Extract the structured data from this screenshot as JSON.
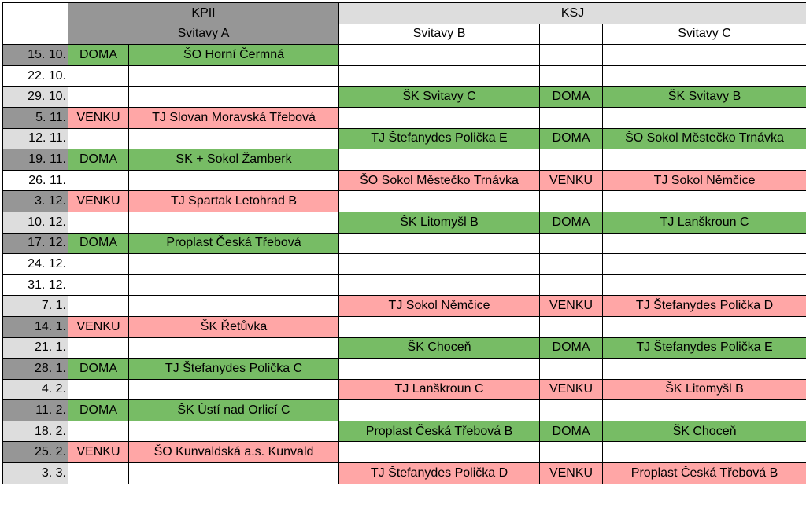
{
  "groups": [
    {
      "label": "",
      "span": 1,
      "tone": "empty"
    },
    {
      "label": "KPII",
      "span": 2,
      "tone": "grp-dark"
    },
    {
      "label": "KSJ",
      "span": 3,
      "tone": "grp-light"
    }
  ],
  "teams": [
    {
      "label": "",
      "span": 1,
      "tone": "empty"
    },
    {
      "label": "Svitavy A",
      "span": 2,
      "tone": "grp-dark"
    },
    {
      "label": "Svitavy B",
      "span": 1,
      "tone": "empty"
    },
    {
      "label": "",
      "span": 1,
      "tone": "empty"
    },
    {
      "label": "Svitavy C",
      "span": 1,
      "tone": "empty"
    }
  ],
  "rows": [
    {
      "date": "15. 10.",
      "shade": "dark",
      "a_ha": "DOMA",
      "a_opp": "ŠO Horní Čermná",
      "b_opp": "",
      "c_ha": "",
      "c_opp": ""
    },
    {
      "date": "22. 10.",
      "shade": "white",
      "a_ha": "",
      "a_opp": "",
      "b_opp": "",
      "c_ha": "",
      "c_opp": ""
    },
    {
      "date": "29. 10.",
      "shade": "light",
      "a_ha": "",
      "a_opp": "",
      "b_opp": "ŠK Svitavy C",
      "c_ha": "DOMA",
      "c_opp": "ŠK Svitavy B"
    },
    {
      "date": "5. 11.",
      "shade": "dark",
      "a_ha": "VENKU",
      "a_opp": "TJ Slovan Moravská Třebová",
      "b_opp": "",
      "c_ha": "",
      "c_opp": ""
    },
    {
      "date": "12. 11.",
      "shade": "light",
      "a_ha": "",
      "a_opp": "",
      "b_opp": "TJ Štefanydes Polička E",
      "c_ha": "DOMA",
      "c_opp": "ŠO Sokol Městečko Trnávka"
    },
    {
      "date": "19. 11.",
      "shade": "dark",
      "a_ha": "DOMA",
      "a_opp": "SK + Sokol Žamberk",
      "b_opp": "",
      "c_ha": "",
      "c_opp": ""
    },
    {
      "date": "26. 11.",
      "shade": "white",
      "a_ha": "",
      "a_opp": "",
      "b_opp": "ŠO Sokol Městečko Trnávka",
      "c_ha": "VENKU",
      "c_opp": "TJ Sokol Němčice"
    },
    {
      "date": "3. 12.",
      "shade": "dark",
      "a_ha": "VENKU",
      "a_opp": "TJ Spartak Letohrad B",
      "b_opp": "",
      "c_ha": "",
      "c_opp": ""
    },
    {
      "date": "10. 12.",
      "shade": "light",
      "a_ha": "",
      "a_opp": "",
      "b_opp": "ŠK Litomyšl B",
      "c_ha": "DOMA",
      "c_opp": "TJ Lanškroun C"
    },
    {
      "date": "17. 12.",
      "shade": "dark",
      "a_ha": "DOMA",
      "a_opp": "Proplast Česká Třebová",
      "b_opp": "",
      "c_ha": "",
      "c_opp": ""
    },
    {
      "date": "24. 12.",
      "shade": "white",
      "a_ha": "",
      "a_opp": "",
      "b_opp": "",
      "c_ha": "",
      "c_opp": ""
    },
    {
      "date": "31. 12.",
      "shade": "white",
      "a_ha": "",
      "a_opp": "",
      "b_opp": "",
      "c_ha": "",
      "c_opp": ""
    },
    {
      "date": "7. 1.",
      "shade": "light",
      "a_ha": "",
      "a_opp": "",
      "b_opp": "TJ Sokol Němčice",
      "c_ha": "VENKU",
      "c_opp": "TJ Štefanydes Polička D"
    },
    {
      "date": "14. 1.",
      "shade": "dark",
      "a_ha": "VENKU",
      "a_opp": "ŠK Řetůvka",
      "b_opp": "",
      "c_ha": "",
      "c_opp": ""
    },
    {
      "date": "21. 1.",
      "shade": "light",
      "a_ha": "",
      "a_opp": "",
      "b_opp": "ŠK Choceň",
      "c_ha": "DOMA",
      "c_opp": "TJ Štefanydes Polička E"
    },
    {
      "date": "28. 1.",
      "shade": "dark",
      "a_ha": "DOMA",
      "a_opp": "TJ Štefanydes Polička C",
      "b_opp": "",
      "c_ha": "",
      "c_opp": ""
    },
    {
      "date": "4. 2.",
      "shade": "light",
      "a_ha": "",
      "a_opp": "",
      "b_opp": "TJ Lanškroun C",
      "c_ha": "VENKU",
      "c_opp": "ŠK Litomyšl B"
    },
    {
      "date": "11. 2.",
      "shade": "dark",
      "a_ha": "DOMA",
      "a_opp": "ŠK Ústí nad Orlicí C",
      "b_opp": "",
      "c_ha": "",
      "c_opp": ""
    },
    {
      "date": "18. 2.",
      "shade": "light",
      "a_ha": "",
      "a_opp": "",
      "b_opp": "Proplast Česká Třebová B",
      "c_ha": "DOMA",
      "c_opp": "ŠK Choceň"
    },
    {
      "date": "25. 2.",
      "shade": "dark",
      "a_ha": "VENKU",
      "a_opp": "ŠO Kunvaldská a.s. Kunvald",
      "b_opp": "",
      "c_ha": "",
      "c_opp": ""
    },
    {
      "date": "3. 3.",
      "shade": "light",
      "a_ha": "",
      "a_opp": "",
      "b_opp": "TJ Štefanydes Polička D",
      "c_ha": "VENKU",
      "c_opp": "Proplast Česká Třebová B"
    }
  ]
}
